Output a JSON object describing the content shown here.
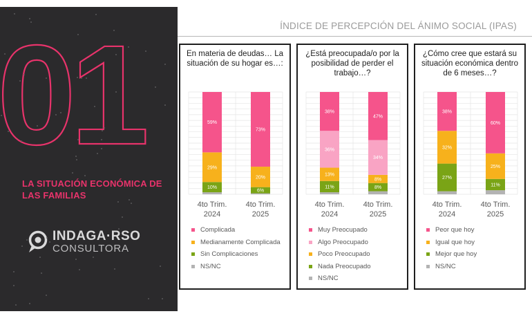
{
  "page_title": "ÍNDICE DE PERCEPCIÓN DEL ÁNIMO SOCIAL (IPAS)",
  "section": {
    "number": "01",
    "title": "LA SITUACIÓN ECONÓMICA DE LAS FAMILIAS"
  },
  "logo": {
    "name": "INDAGA·RSO",
    "sub": "CONSULTORA"
  },
  "colors": {
    "accent": "#e8336b",
    "dark_bg": "#2b2a2c",
    "grid": "#e4e4e4"
  },
  "chart_data": [
    {
      "type": "bar",
      "stacked": true,
      "title": "En materia de deudas… La situación de su hogar es…:",
      "categories": [
        "4to Trim. 2024",
        "4to Trim. 2025"
      ],
      "series": [
        {
          "name": "NS/NC",
          "color": "#b3b3b3",
          "values": [
            2,
            1
          ]
        },
        {
          "name": "Sin Complicaciones",
          "color": "#7aa416",
          "values": [
            10,
            6
          ]
        },
        {
          "name": "Medianamente Complicada",
          "color": "#f7b11c",
          "values": [
            29,
            20
          ]
        },
        {
          "name": "Complicada",
          "color": "#f5548b",
          "values": [
            59,
            73
          ]
        }
      ],
      "labels": [
        "",
        "10%|6%",
        "29%|20%",
        "59%|73%"
      ],
      "ylim": [
        0,
        100
      ]
    },
    {
      "type": "bar",
      "stacked": true,
      "title": "¿Está preocupada/o por la posibilidad de perder el trabajo…?",
      "categories": [
        "4to Trim. 2024",
        "4to Trim. 2025"
      ],
      "series": [
        {
          "name": "NS/NC",
          "color": "#b3b3b3",
          "values": [
            2,
            3
          ]
        },
        {
          "name": "Nada Preocupado",
          "color": "#7aa416",
          "values": [
            11,
            8
          ]
        },
        {
          "name": "Poco Preocupado",
          "color": "#f7b11c",
          "values": [
            13,
            8
          ]
        },
        {
          "name": "Algo Preocupado",
          "color": "#f9a4c4",
          "values": [
            36,
            34
          ]
        },
        {
          "name": "Muy Preocupado",
          "color": "#f5548b",
          "values": [
            38,
            47
          ]
        }
      ],
      "labels": [
        "",
        "11%|8%",
        "13%|8%",
        "36%|34%",
        "38%|47%"
      ],
      "ylim": [
        0,
        100
      ]
    },
    {
      "type": "bar",
      "stacked": true,
      "title": "¿Cómo cree que estará su situación económica dentro de 6 meses…?",
      "categories": [
        "4to Trim. 2024",
        "4to Trim. 2025"
      ],
      "series": [
        {
          "name": "NS/NC",
          "color": "#b3b3b3",
          "values": [
            3,
            4
          ]
        },
        {
          "name": "Mejor que hoy",
          "color": "#7aa416",
          "values": [
            27,
            11
          ]
        },
        {
          "name": "Igual que hoy",
          "color": "#f7b11c",
          "values": [
            32,
            25
          ]
        },
        {
          "name": "Peor que hoy",
          "color": "#f5548b",
          "values": [
            38,
            60
          ]
        }
      ],
      "labels": [
        "",
        "27%|11%",
        "32%|25%",
        "38%|60%"
      ],
      "ylim": [
        0,
        100
      ]
    }
  ],
  "legends": [
    [
      "Complicada",
      "Medianamente Complicada",
      "Sin Complicaciones",
      "NS/NC"
    ],
    [
      "Muy Preocupado",
      "Algo Preocupado",
      "Poco Preocupado",
      "Nada Preocupado",
      "NS/NC"
    ],
    [
      "Peor que hoy",
      "Igual que hoy",
      "Mejor que hoy",
      "NS/NC"
    ]
  ]
}
